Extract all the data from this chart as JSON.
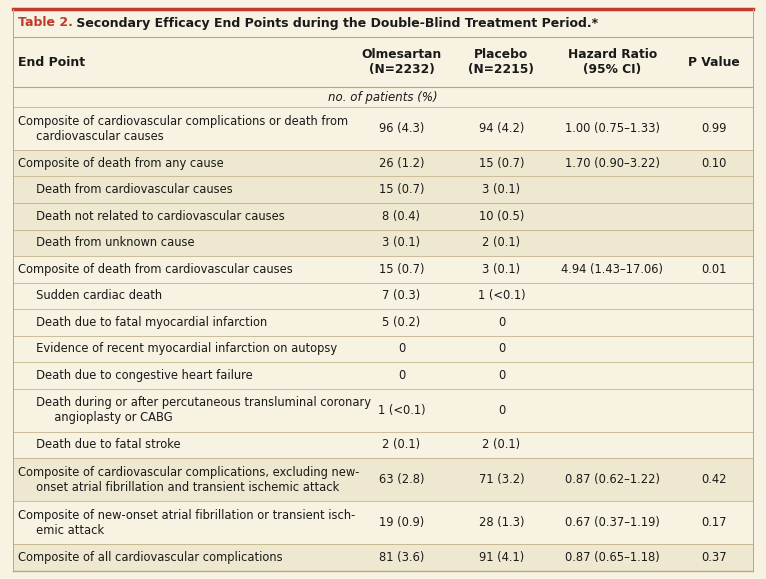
{
  "title_prefix": "Table 2.",
  "title_rest": " Secondary Efficacy End Points during the Double-Blind Treatment Period.*",
  "title_prefix_color": "#c0392b",
  "title_rest_color": "#1a1a1a",
  "header_cols": [
    "End Point",
    "Olmesartan\n(N=2232)",
    "Placebo\n(N=2215)",
    "Hazard Ratio\n(95% CI)",
    "P Value"
  ],
  "subheader": "no. of patients (%)",
  "background_color": "#f7f2e2",
  "alt_row_color": "#eee8d0",
  "border_color": "#b8a87a",
  "red_color": "#c0392b",
  "text_color": "#1a1a1a",
  "rows": [
    {
      "endpoint": "Composite of cardiovascular complications or death from\n     cardiovascular causes",
      "olmesartan": "96 (4.3)",
      "placebo": "94 (4.2)",
      "hazard": "1.00 (0.75–1.33)",
      "pvalue": "0.99",
      "alt": false,
      "multiline": true
    },
    {
      "endpoint": "Composite of death from any cause",
      "olmesartan": "26 (1.2)",
      "placebo": "15 (0.7)",
      "hazard": "1.70 (0.90–3.22)",
      "pvalue": "0.10",
      "alt": true,
      "multiline": false
    },
    {
      "endpoint": "     Death from cardiovascular causes",
      "olmesartan": "15 (0.7)",
      "placebo": "3 (0.1)",
      "hazard": "",
      "pvalue": "",
      "alt": true,
      "multiline": false
    },
    {
      "endpoint": "     Death not related to cardiovascular causes",
      "olmesartan": "8 (0.4)",
      "placebo": "10 (0.5)",
      "hazard": "",
      "pvalue": "",
      "alt": true,
      "multiline": false
    },
    {
      "endpoint": "     Death from unknown cause",
      "olmesartan": "3 (0.1)",
      "placebo": "2 (0.1)",
      "hazard": "",
      "pvalue": "",
      "alt": true,
      "multiline": false
    },
    {
      "endpoint": "Composite of death from cardiovascular causes",
      "olmesartan": "15 (0.7)",
      "placebo": "3 (0.1)",
      "hazard": "4.94 (1.43–17.06)",
      "pvalue": "0.01",
      "alt": false,
      "multiline": false
    },
    {
      "endpoint": "     Sudden cardiac death",
      "olmesartan": "7 (0.3)",
      "placebo": "1 (<0.1)",
      "hazard": "",
      "pvalue": "",
      "alt": false,
      "multiline": false
    },
    {
      "endpoint": "     Death due to fatal myocardial infarction",
      "olmesartan": "5 (0.2)",
      "placebo": "0",
      "hazard": "",
      "pvalue": "",
      "alt": false,
      "multiline": false
    },
    {
      "endpoint": "     Evidence of recent myocardial infarction on autopsy",
      "olmesartan": "0",
      "placebo": "0",
      "hazard": "",
      "pvalue": "",
      "alt": false,
      "multiline": false
    },
    {
      "endpoint": "     Death due to congestive heart failure",
      "olmesartan": "0",
      "placebo": "0",
      "hazard": "",
      "pvalue": "",
      "alt": false,
      "multiline": false
    },
    {
      "endpoint": "     Death during or after percutaneous transluminal coronary\n          angioplasty or CABG",
      "olmesartan": "1 (<0.1)",
      "placebo": "0",
      "hazard": "",
      "pvalue": "",
      "alt": false,
      "multiline": true
    },
    {
      "endpoint": "     Death due to fatal stroke",
      "olmesartan": "2 (0.1)",
      "placebo": "2 (0.1)",
      "hazard": "",
      "pvalue": "",
      "alt": false,
      "multiline": false
    },
    {
      "endpoint": "Composite of cardiovascular complications, excluding new-\n     onset atrial fibrillation and transient ischemic attack",
      "olmesartan": "63 (2.8)",
      "placebo": "71 (3.2)",
      "hazard": "0.87 (0.62–1.22)",
      "pvalue": "0.42",
      "alt": true,
      "multiline": true
    },
    {
      "endpoint": "Composite of new-onset atrial fibrillation or transient isch-\n     emic attack",
      "olmesartan": "19 (0.9)",
      "placebo": "28 (1.3)",
      "hazard": "0.67 (0.37–1.19)",
      "pvalue": "0.17",
      "alt": false,
      "multiline": true
    },
    {
      "endpoint": "Composite of all cardiovascular complications",
      "olmesartan": "81 (3.6)",
      "placebo": "91 (4.1)",
      "hazard": "0.87 (0.65–1.18)",
      "pvalue": "0.37",
      "alt": true,
      "multiline": false
    }
  ],
  "figsize": [
    7.66,
    5.79
  ],
  "dpi": 100
}
